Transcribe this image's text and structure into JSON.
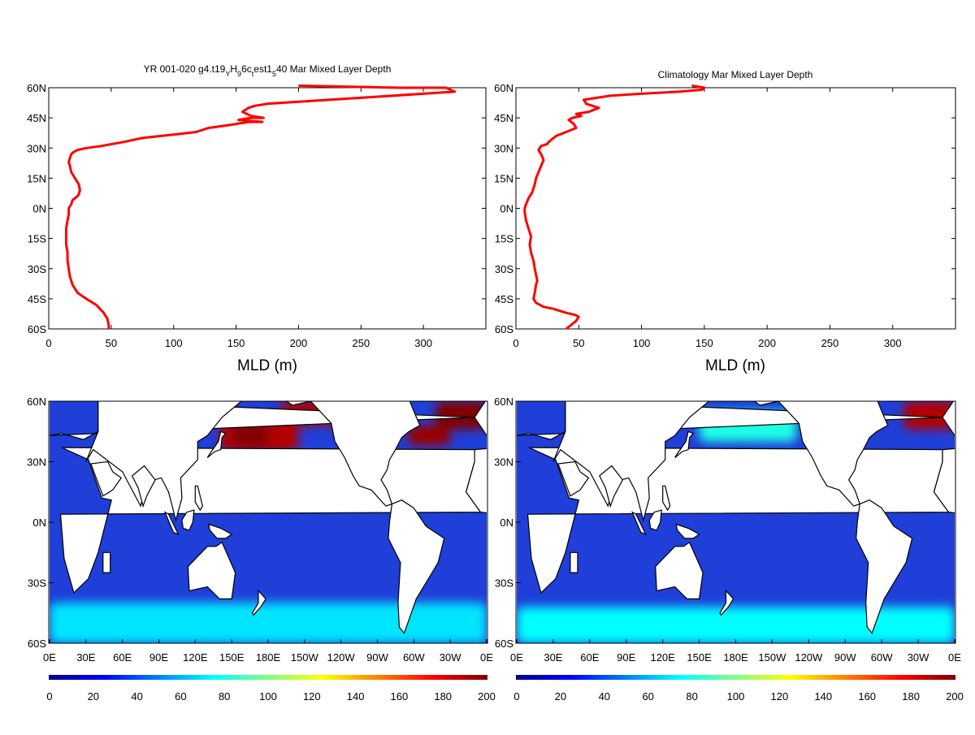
{
  "chart_data": [
    {
      "type": "line",
      "title": "YR 001-020 g4.t19ᵧH₉6cₜest1₅40 Mar Mixed Layer Depth",
      "title_parts": [
        "YR 001-020 g4.t19",
        "Y",
        "H",
        "9",
        "6c",
        "t",
        "est1",
        "5",
        "40 Mar Mixed Layer Depth"
      ],
      "xlabel": "MLD (m)",
      "ylabel": "",
      "xlim": [
        0,
        350
      ],
      "ylim": [
        -60,
        60
      ],
      "xticks": [
        "0",
        "50",
        "100",
        "150",
        "200",
        "250",
        "300"
      ],
      "yticks": [
        "60N",
        "45N",
        "30N",
        "15N",
        "0N",
        "15S",
        "30S",
        "45S",
        "60S"
      ],
      "series": [
        {
          "color": "#ff0000",
          "x": [
            48,
            48,
            47,
            44,
            38,
            30,
            23,
            19,
            17,
            16,
            15,
            15,
            14,
            14,
            14,
            15,
            16,
            16,
            17,
            18,
            19,
            23,
            24,
            25,
            24,
            21,
            18,
            17,
            16,
            17,
            18,
            20,
            23,
            30,
            42,
            60,
            75,
            90,
            105,
            118,
            128,
            140,
            150,
            160,
            171,
            152,
            162,
            172,
            162,
            155,
            160,
            165,
            175,
            200,
            250,
            300,
            325,
            318,
            280,
            200
          ],
          "y": [
            -60,
            -58,
            -55,
            -52,
            -48,
            -45,
            -42,
            -38,
            -34,
            -30,
            -26,
            -22,
            -18,
            -14,
            -10,
            -6,
            -3,
            0,
            1,
            2,
            4,
            6,
            7,
            9,
            12,
            15,
            18,
            21,
            23,
            25,
            27,
            28,
            29,
            30,
            31,
            33,
            35,
            36,
            37,
            38,
            40,
            41,
            42,
            43,
            43,
            44,
            45,
            45,
            46,
            48,
            50,
            51,
            52,
            53,
            55,
            57,
            58,
            60,
            60,
            61
          ]
        }
      ]
    },
    {
      "type": "line",
      "title": "Climatology Mar Mixed Layer Depth",
      "xlabel": "MLD (m)",
      "ylabel": "",
      "xlim": [
        0,
        350
      ],
      "ylim": [
        -60,
        60
      ],
      "xticks": [
        "0",
        "50",
        "100",
        "150",
        "200",
        "250",
        "300"
      ],
      "yticks": [
        "60N",
        "45N",
        "30N",
        "15N",
        "0N",
        "15S",
        "30S",
        "45S",
        "60S"
      ],
      "series": [
        {
          "color": "#ff0000",
          "x": [
            40,
            44,
            48,
            50,
            47,
            40,
            30,
            22,
            16,
            14,
            15,
            16,
            17,
            16,
            15,
            14,
            12,
            11,
            12,
            10,
            8,
            7,
            7,
            8,
            10,
            13,
            15,
            16,
            18,
            20,
            22,
            20,
            18,
            20,
            25,
            26,
            28,
            32,
            40,
            48,
            46,
            42,
            45,
            52,
            48,
            58,
            66,
            56,
            54,
            75,
            100,
            130,
            148,
            150,
            140
          ],
          "y": [
            -60,
            -58,
            -56,
            -54,
            -53,
            -52,
            -50,
            -49,
            -47,
            -45,
            -42,
            -38,
            -36,
            -33,
            -30,
            -26,
            -22,
            -18,
            -14,
            -10,
            -6,
            -2,
            0,
            2,
            5,
            8,
            12,
            15,
            18,
            21,
            24,
            27,
            29,
            31,
            32,
            33,
            34,
            36,
            38,
            40,
            42,
            44,
            45,
            46,
            47,
            48,
            50,
            52,
            54,
            56,
            57,
            58,
            59,
            60,
            61
          ]
        }
      ]
    },
    {
      "type": "heatmap",
      "title": "",
      "xticks": [
        "0E",
        "30E",
        "60E",
        "90E",
        "120E",
        "150E",
        "180E",
        "150W",
        "120W",
        "90W",
        "60W",
        "30W",
        "0E"
      ],
      "yticks": [
        "60N",
        "30N",
        "0N",
        "30S",
        "60S"
      ],
      "xlim": [
        0,
        360
      ],
      "ylim": [
        -60,
        60
      ],
      "colorbar": {
        "ticks": [
          "0",
          "20",
          "40",
          "60",
          "80",
          "100",
          "120",
          "140",
          "160",
          "180",
          "200"
        ],
        "range": [
          0,
          200
        ]
      },
      "features": [
        {
          "name": "kuroshio-extension",
          "lon": [
            140,
            205
          ],
          "lat": [
            35,
            50
          ],
          "value": 190
        },
        {
          "name": "kuroshio-extension-core",
          "lon": [
            150,
            180
          ],
          "lat": [
            38,
            48
          ],
          "value": 200
        },
        {
          "name": "north-pacific-high",
          "lon": [
            190,
            240
          ],
          "lat": [
            48,
            60
          ],
          "value": 190
        },
        {
          "name": "gulf-stream",
          "lon": [
            295,
            330
          ],
          "lat": [
            38,
            48
          ],
          "value": 195
        },
        {
          "name": "north-atlantic-deep",
          "lon": [
            318,
            360
          ],
          "lat": [
            46,
            60
          ],
          "value": 200
        },
        {
          "name": "southern-ocean-band",
          "lon": [
            0,
            360
          ],
          "lat": [
            -60,
            -40
          ],
          "value": 70
        }
      ]
    },
    {
      "type": "heatmap",
      "title": "",
      "xticks": [
        "0E",
        "30E",
        "60E",
        "90E",
        "120E",
        "150E",
        "180E",
        "150W",
        "120W",
        "90W",
        "60W",
        "30W",
        "0E"
      ],
      "yticks": [
        "60N",
        "30N",
        "0N",
        "30S",
        "60S"
      ],
      "xlim": [
        0,
        360
      ],
      "ylim": [
        -60,
        60
      ],
      "colorbar": {
        "ticks": [
          "0",
          "20",
          "40",
          "60",
          "80",
          "100",
          "120",
          "140",
          "160",
          "180",
          "200"
        ],
        "range": [
          0,
          200
        ]
      },
      "features": [
        {
          "name": "north-pacific-moderate",
          "lon": [
            150,
            230
          ],
          "lat": [
            40,
            55
          ],
          "value": 80
        },
        {
          "name": "north-atlantic-deep",
          "lon": [
            318,
            360
          ],
          "lat": [
            46,
            60
          ],
          "value": 190
        },
        {
          "name": "southern-ocean-band",
          "lon": [
            0,
            360
          ],
          "lat": [
            -60,
            -42
          ],
          "value": 75
        }
      ]
    }
  ]
}
